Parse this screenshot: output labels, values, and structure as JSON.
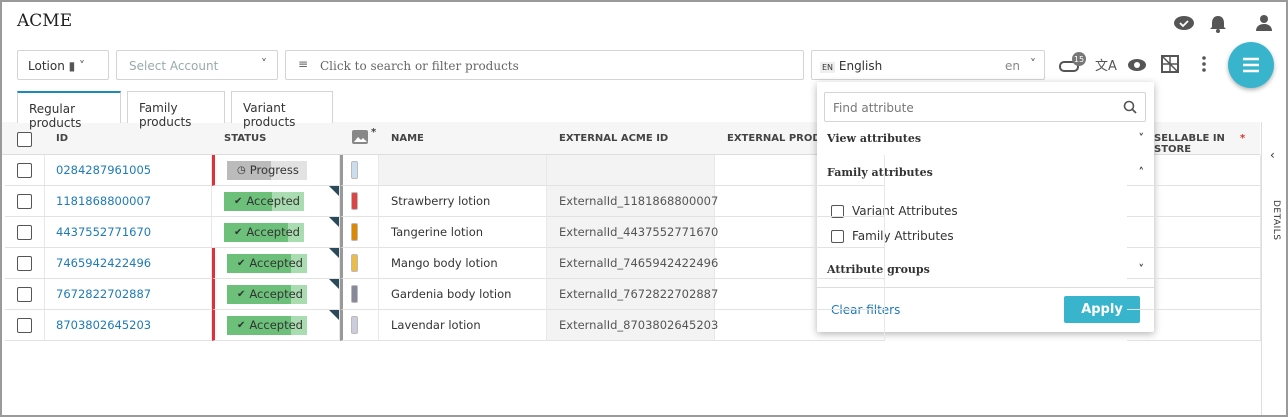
{
  "header": {
    "title": "ACME"
  },
  "toolbar": {
    "catalog": "Lotion",
    "account_placeholder": "Select Account",
    "search_placeholder": "Click to search or filter products",
    "language_badge": "EN",
    "language": "English",
    "language_code": "en",
    "notification_count": 15
  },
  "tabs": [
    "Regular products",
    "Family products",
    "Variant products"
  ],
  "table": {
    "columns": {
      "id": "ID",
      "status": "STATUS",
      "image_required": "*",
      "name": "NAME",
      "external_id": "EXTERNAL ACME ID",
      "external_product": "EXTERNAL PRODUCT",
      "sellable": "SELLABLE IN STORE",
      "sellable_required": "*"
    },
    "rows": [
      {
        "id": "0284287961005",
        "status": "Progress",
        "name": null,
        "external_id": null
      },
      {
        "id": "1181868800007",
        "status": "Accepted",
        "name": "Strawberry lotion",
        "external_id": "ExternalId_1181868800007"
      },
      {
        "id": "4437552771670",
        "status": "Accepted",
        "name": "Tangerine lotion",
        "external_id": "ExternalId_4437552771670"
      },
      {
        "id": "7465942422496",
        "status": "Accepted",
        "name": "Mango body lotion",
        "external_id": "ExternalId_7465942422496"
      },
      {
        "id": "7672822702887",
        "status": "Accepted",
        "name": "Gardenia body lotion",
        "external_id": "ExternalId_7672822702887"
      },
      {
        "id": "8703802645203",
        "status": "Accepted",
        "name": "Lavendar lotion",
        "external_id": "ExternalId_8703802645203"
      }
    ]
  },
  "side_panel": {
    "label": "DETAILS"
  },
  "attribute_dropdown": {
    "search_placeholder": "Find attribute",
    "sections": [
      "View attributes",
      "Family attributes",
      "Attribute groups"
    ],
    "options": [
      "Variant Attributes",
      "Family Attributes"
    ],
    "clear": "Clear filters",
    "apply": "Apply"
  }
}
